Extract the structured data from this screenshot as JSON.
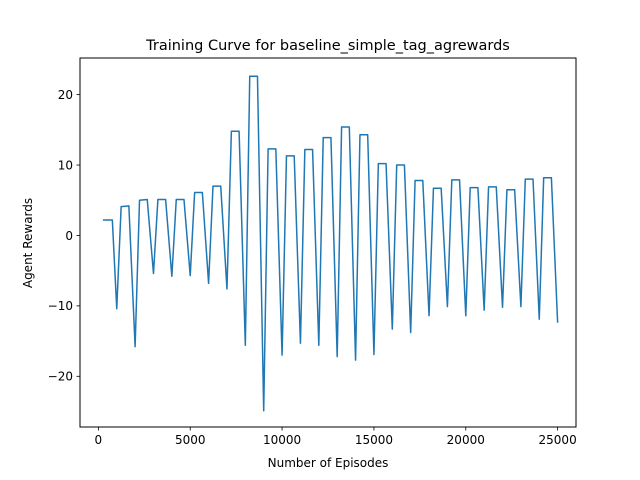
{
  "chart_data": {
    "type": "line",
    "title": "Training Curve for baseline_simple_tag_agrewards",
    "xlabel": "Number of Episodes",
    "ylabel": "Agent Rewards",
    "xlim": [
      -1000,
      26000
    ],
    "ylim": [
      -27.2,
      25.2
    ],
    "xticks": [
      0,
      5000,
      10000,
      15000,
      20000,
      25000
    ],
    "xtick_labels": [
      "0",
      "5000",
      "10000",
      "15000",
      "20000",
      "25000"
    ],
    "yticks": [
      -20,
      -10,
      0,
      10,
      20
    ],
    "ytick_labels": [
      "−20",
      "−10",
      "0",
      "10",
      "20"
    ],
    "grid": false,
    "legend": "none",
    "series": [
      {
        "color": "#1f77b4",
        "x": [
          250,
          760,
          1000,
          1240,
          1660,
          2000,
          2240,
          2660,
          3000,
          3240,
          3660,
          4000,
          4240,
          4660,
          5000,
          5240,
          5660,
          6000,
          6240,
          6660,
          7000,
          7240,
          7660,
          8000,
          8240,
          8660,
          9000,
          9240,
          9660,
          10000,
          10240,
          10660,
          11000,
          11240,
          11660,
          12000,
          12240,
          12660,
          13000,
          13240,
          13660,
          14000,
          14240,
          14660,
          15000,
          15240,
          15660,
          16000,
          16240,
          16660,
          17000,
          17240,
          17660,
          18000,
          18240,
          18660,
          19000,
          19240,
          19660,
          20000,
          20240,
          20660,
          21000,
          21240,
          21660,
          22000,
          22240,
          22660,
          23000,
          23240,
          23660,
          24000,
          24240,
          24660,
          25000
        ],
        "y": [
          2.2,
          2.2,
          -10.4,
          4.1,
          4.2,
          -15.8,
          5.0,
          5.1,
          -5.4,
          5.1,
          5.1,
          -5.8,
          5.1,
          5.1,
          -5.7,
          6.1,
          6.1,
          -6.8,
          7.0,
          7.0,
          -7.6,
          14.8,
          14.8,
          -15.6,
          22.6,
          22.6,
          -24.9,
          12.3,
          12.3,
          -17.0,
          11.3,
          11.3,
          -15.3,
          12.2,
          12.2,
          -15.6,
          13.9,
          13.9,
          -17.2,
          15.4,
          15.4,
          -17.7,
          14.3,
          14.3,
          -16.9,
          10.2,
          10.2,
          -13.3,
          10.0,
          10.0,
          -13.8,
          7.8,
          7.8,
          -11.4,
          6.7,
          6.7,
          -10.1,
          7.9,
          7.9,
          -11.4,
          6.8,
          6.8,
          -10.6,
          6.9,
          6.9,
          -10.2,
          6.5,
          6.5,
          -10.1,
          8.0,
          8.0,
          -11.9,
          8.2,
          8.2,
          -12.4
        ]
      }
    ]
  }
}
